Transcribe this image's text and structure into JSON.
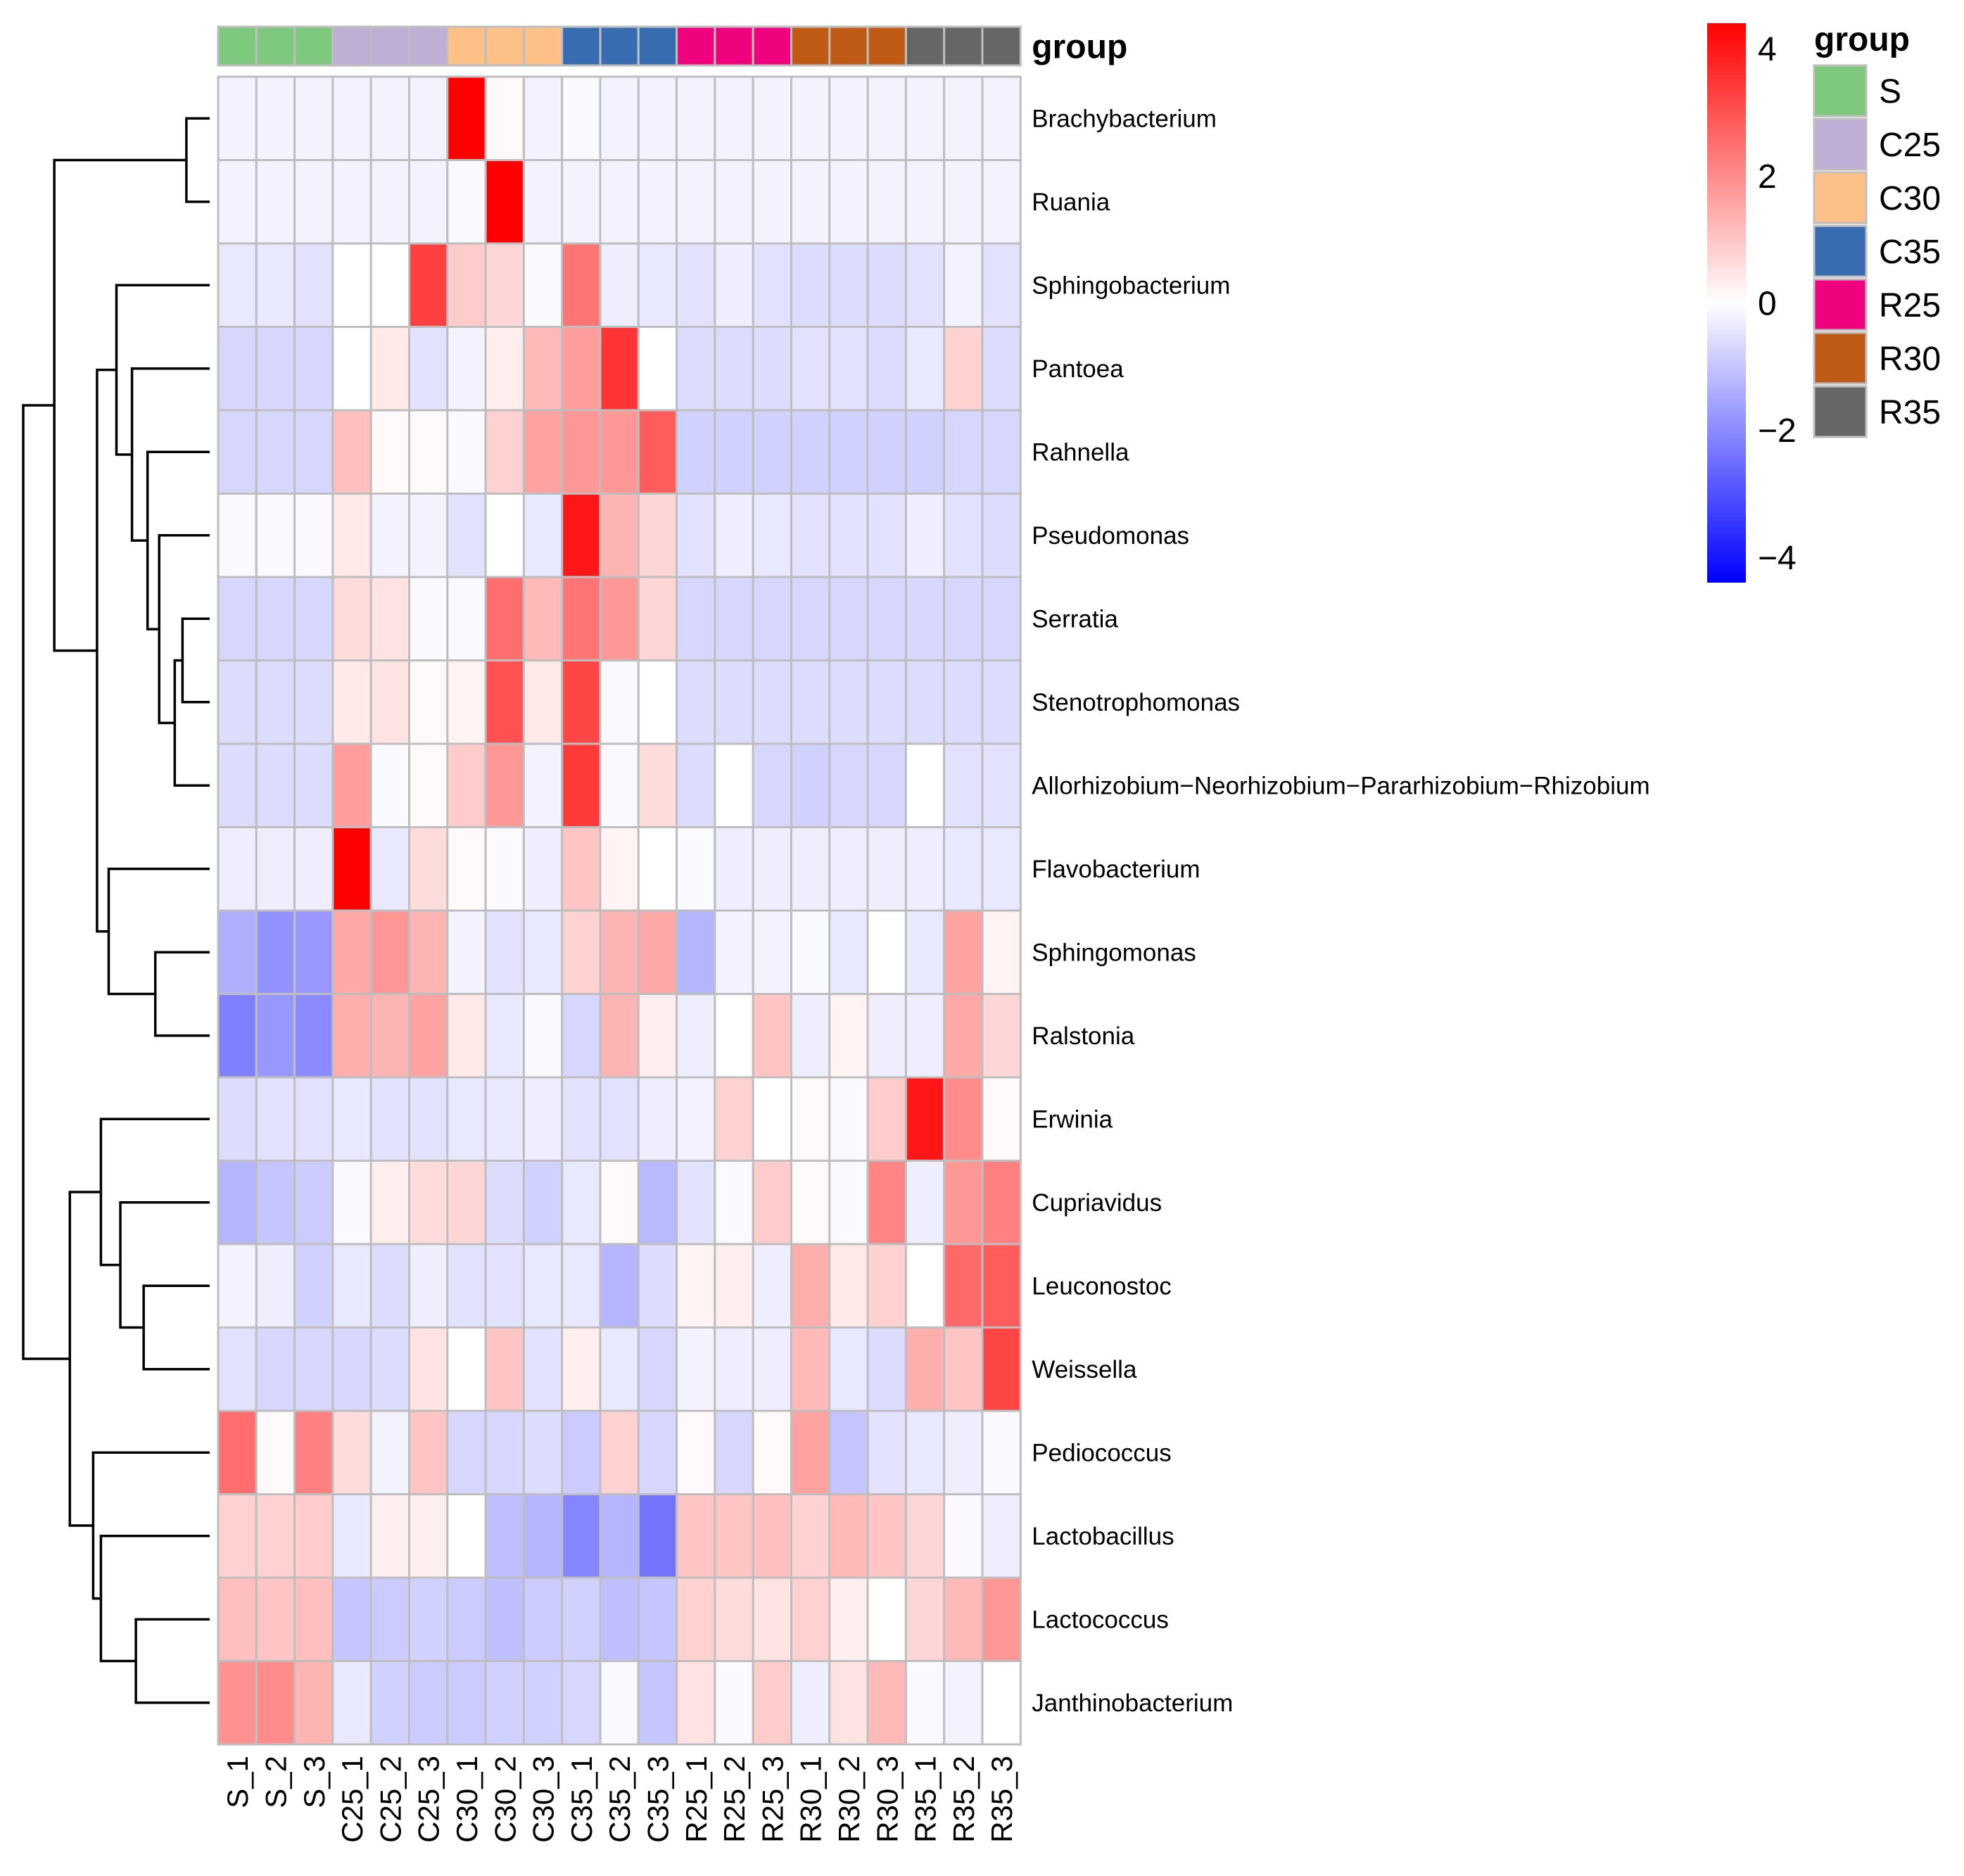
{
  "chart_data": {
    "type": "heatmap",
    "columns": [
      "S_1",
      "S_2",
      "S_3",
      "C25_1",
      "C25_2",
      "C25_3",
      "C30_1",
      "C30_2",
      "C30_3",
      "C35_1",
      "C35_2",
      "C35_3",
      "R25_1",
      "R25_2",
      "R25_3",
      "R30_1",
      "R30_2",
      "R30_3",
      "R35_1",
      "R35_2",
      "R35_3"
    ],
    "column_groups": [
      "S",
      "S",
      "S",
      "C25",
      "C25",
      "C25",
      "C30",
      "C30",
      "C30",
      "C35",
      "C35",
      "C35",
      "R25",
      "R25",
      "R25",
      "R30",
      "R30",
      "R30",
      "R35",
      "R35",
      "R35"
    ],
    "annotation_title": "group",
    "rows": [
      "Brachybacterium",
      "Ruania",
      "Sphingobacterium",
      "Pantoea",
      "Rahnella",
      "Pseudomonas",
      "Serratia",
      "Stenotrophomonas",
      "Allorhizobium−Neorhizobium−Pararhizobium−Rhizobium",
      "Flavobacterium",
      "Sphingomonas",
      "Ralstonia",
      "Erwinia",
      "Cupriavidus",
      "Leuconostoc",
      "Weissella",
      "Pediococcus",
      "Lactobacillus",
      "Lactococcus",
      "Janthinobacterium"
    ],
    "values": [
      [
        -0.2,
        -0.2,
        -0.2,
        -0.2,
        -0.2,
        -0.2,
        4.4,
        0.1,
        -0.2,
        -0.1,
        -0.2,
        -0.2,
        -0.2,
        -0.2,
        -0.2,
        -0.2,
        -0.2,
        -0.2,
        -0.2,
        -0.2,
        -0.2
      ],
      [
        -0.2,
        -0.2,
        -0.2,
        -0.2,
        -0.2,
        -0.2,
        -0.1,
        4.4,
        -0.2,
        -0.2,
        -0.2,
        -0.2,
        -0.2,
        -0.2,
        -0.2,
        -0.2,
        -0.2,
        -0.2,
        -0.2,
        -0.2,
        -0.2
      ],
      [
        -0.4,
        -0.4,
        -0.5,
        0.0,
        0.0,
        3.3,
        0.9,
        0.7,
        -0.1,
        2.4,
        -0.3,
        -0.4,
        -0.5,
        -0.3,
        -0.5,
        -0.6,
        -0.6,
        -0.6,
        -0.5,
        -0.2,
        -0.5
      ],
      [
        -0.7,
        -0.7,
        -0.7,
        0.0,
        0.4,
        -0.5,
        -0.2,
        0.3,
        1.2,
        1.7,
        3.5,
        0.0,
        -0.6,
        -0.6,
        -0.6,
        -0.5,
        -0.5,
        -0.6,
        -0.4,
        0.8,
        -0.6
      ],
      [
        -0.7,
        -0.7,
        -0.7,
        1.1,
        0.1,
        0.1,
        -0.1,
        0.8,
        1.6,
        1.8,
        1.8,
        2.8,
        -0.8,
        -0.8,
        -0.8,
        -0.8,
        -0.8,
        -0.8,
        -0.8,
        -0.7,
        -0.7
      ],
      [
        -0.1,
        -0.1,
        -0.1,
        0.4,
        -0.2,
        -0.2,
        -0.5,
        0.0,
        -0.4,
        4.0,
        1.3,
        0.7,
        -0.5,
        -0.3,
        -0.4,
        -0.5,
        -0.5,
        -0.5,
        -0.3,
        -0.5,
        -0.6
      ],
      [
        -0.7,
        -0.7,
        -0.7,
        0.6,
        0.5,
        -0.1,
        -0.1,
        2.5,
        1.2,
        2.4,
        1.8,
        0.7,
        -0.7,
        -0.7,
        -0.7,
        -0.7,
        -0.7,
        -0.7,
        -0.7,
        -0.7,
        -0.7
      ],
      [
        -0.6,
        -0.6,
        -0.6,
        0.4,
        0.5,
        0.1,
        0.2,
        3.0,
        0.4,
        3.2,
        -0.1,
        0.0,
        -0.6,
        -0.6,
        -0.6,
        -0.6,
        -0.6,
        -0.6,
        -0.6,
        -0.6,
        -0.6
      ],
      [
        -0.6,
        -0.6,
        -0.6,
        1.7,
        -0.1,
        0.1,
        0.9,
        1.8,
        -0.2,
        3.4,
        -0.1,
        0.6,
        -0.6,
        0.0,
        -0.7,
        -0.8,
        -0.7,
        -0.7,
        0.0,
        -0.5,
        -0.5
      ],
      [
        -0.3,
        -0.3,
        -0.3,
        4.4,
        -0.4,
        0.6,
        0.1,
        -0.1,
        -0.3,
        1.0,
        0.2,
        0.0,
        -0.1,
        -0.3,
        -0.3,
        -0.3,
        -0.3,
        -0.3,
        -0.3,
        -0.4,
        -0.4
      ],
      [
        -1.4,
        -1.9,
        -1.8,
        1.5,
        1.8,
        1.3,
        -0.2,
        -0.5,
        -0.4,
        0.8,
        1.3,
        1.5,
        -1.3,
        -0.2,
        -0.2,
        -0.1,
        -0.4,
        0.0,
        -0.4,
        1.6,
        0.2
      ],
      [
        -2.2,
        -1.8,
        -2.0,
        1.4,
        1.3,
        1.6,
        0.4,
        -0.4,
        -0.1,
        -0.7,
        1.3,
        0.3,
        -0.3,
        0.0,
        1.0,
        -0.3,
        0.2,
        -0.3,
        -0.3,
        1.5,
        0.7
      ],
      [
        -0.6,
        -0.5,
        -0.5,
        -0.4,
        -0.5,
        -0.5,
        -0.4,
        -0.4,
        -0.3,
        -0.5,
        -0.5,
        -0.3,
        -0.2,
        0.8,
        0.0,
        0.1,
        -0.1,
        0.9,
        4.0,
        2.0,
        0.1
      ],
      [
        -1.3,
        -1.0,
        -0.9,
        -0.1,
        0.3,
        0.6,
        0.7,
        -0.6,
        -0.8,
        -0.4,
        0.1,
        -1.2,
        -0.5,
        -0.1,
        0.9,
        0.1,
        -0.1,
        2.1,
        -0.3,
        1.8,
        2.2
      ],
      [
        -0.2,
        -0.3,
        -0.8,
        -0.4,
        -0.6,
        -0.3,
        -0.5,
        -0.5,
        -0.4,
        -0.4,
        -1.3,
        -0.6,
        0.2,
        0.3,
        -0.3,
        1.4,
        0.4,
        0.8,
        0.0,
        2.6,
        2.8
      ],
      [
        -0.5,
        -0.7,
        -0.7,
        -0.7,
        -0.6,
        0.5,
        0.0,
        1.0,
        -0.5,
        0.3,
        -0.4,
        -0.7,
        -0.2,
        -0.3,
        -0.3,
        1.2,
        -0.4,
        -0.6,
        1.4,
        1.0,
        3.2
      ],
      [
        2.5,
        0.1,
        2.2,
        0.6,
        -0.2,
        1.0,
        -0.7,
        -0.7,
        -0.6,
        -0.9,
        0.8,
        -0.7,
        0.1,
        -0.7,
        0.1,
        1.6,
        -1.0,
        -0.5,
        -0.4,
        -0.3,
        -0.1
      ],
      [
        0.8,
        0.8,
        0.9,
        -0.4,
        0.3,
        0.3,
        0.0,
        -1.1,
        -1.3,
        -2.1,
        -1.3,
        -2.4,
        1.0,
        1.0,
        1.1,
        0.8,
        1.2,
        1.0,
        0.7,
        -0.1,
        -0.3
      ],
      [
        1.1,
        1.0,
        1.1,
        -1.0,
        -0.9,
        -0.8,
        -0.9,
        -1.1,
        -0.9,
        -0.8,
        -1.1,
        -1.0,
        0.8,
        0.6,
        0.5,
        0.8,
        0.3,
        0.0,
        0.7,
        1.2,
        1.8
      ],
      [
        1.9,
        2.0,
        1.3,
        -0.4,
        -0.8,
        -0.9,
        -0.9,
        -0.8,
        -0.8,
        -0.7,
        -0.1,
        -1.0,
        0.5,
        -0.1,
        0.9,
        -0.3,
        0.5,
        1.2,
        -0.1,
        -0.2,
        0.0
      ]
    ],
    "color_scale": {
      "min": -4.4,
      "max": 4.4,
      "low_color": "#0000FF",
      "mid_color": "#FFFFFF",
      "high_color": "#FF0000",
      "ticks": [
        4,
        2,
        0,
        -2,
        -4
      ],
      "tick_labels": [
        "4",
        "2",
        "0",
        "−2",
        "−4"
      ]
    },
    "legend": {
      "title": "group",
      "entries": [
        {
          "label": "S",
          "color": "#7FC97F"
        },
        {
          "label": "C25",
          "color": "#BEAED4"
        },
        {
          "label": "C30",
          "color": "#FDC086"
        },
        {
          "label": "C35",
          "color": "#386CB0"
        },
        {
          "label": "R25",
          "color": "#F0027F"
        },
        {
          "label": "R30",
          "color": "#BF5B17"
        },
        {
          "label": "R35",
          "color": "#666666"
        }
      ]
    },
    "row_dendrogram": {
      "merges": [
        [
          0,
          1
        ],
        [
          6,
          7
        ],
        [
          21,
          8
        ],
        [
          22,
          5
        ],
        [
          23,
          4
        ],
        [
          24,
          3
        ],
        [
          25,
          2
        ],
        [
          10,
          11
        ],
        [
          27,
          9
        ],
        [
          26,
          28
        ],
        [
          20,
          29
        ],
        [
          14,
          15
        ],
        [
          31,
          13
        ],
        [
          32,
          12
        ],
        [
          18,
          19
        ],
        [
          34,
          17
        ],
        [
          35,
          16
        ],
        [
          33,
          36
        ],
        [
          30,
          37
        ]
      ],
      "heights": [
        0.06,
        0.07,
        0.09,
        0.13,
        0.16,
        0.2,
        0.24,
        0.14,
        0.26,
        0.29,
        0.4,
        0.17,
        0.23,
        0.28,
        0.19,
        0.28,
        0.3,
        0.36,
        0.48
      ]
    },
    "grid_color": "#BEBEBE"
  }
}
